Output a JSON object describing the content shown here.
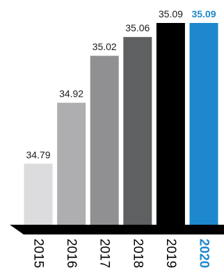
{
  "chart_data": {
    "type": "bar",
    "categories": [
      "2015",
      "2016",
      "2017",
      "2018",
      "2019",
      "2020"
    ],
    "values": [
      34.79,
      34.92,
      35.02,
      35.06,
      35.09,
      35.09
    ],
    "value_labels": [
      "34.79",
      "34.92",
      "35.02",
      "35.06",
      "35.09",
      "35.09"
    ],
    "bar_colors": [
      "#dcdcde",
      "#aeaeb0",
      "#909092",
      "#5f6062",
      "#000000",
      "#1e88cf"
    ],
    "highlight_color": "#1e88cf",
    "highlight_index": 5,
    "title": "",
    "xlabel": "",
    "ylabel": "",
    "ylim": [
      34.66,
      35.09
    ],
    "grid": false,
    "legend": "none",
    "axis_labels_rotated": true
  }
}
